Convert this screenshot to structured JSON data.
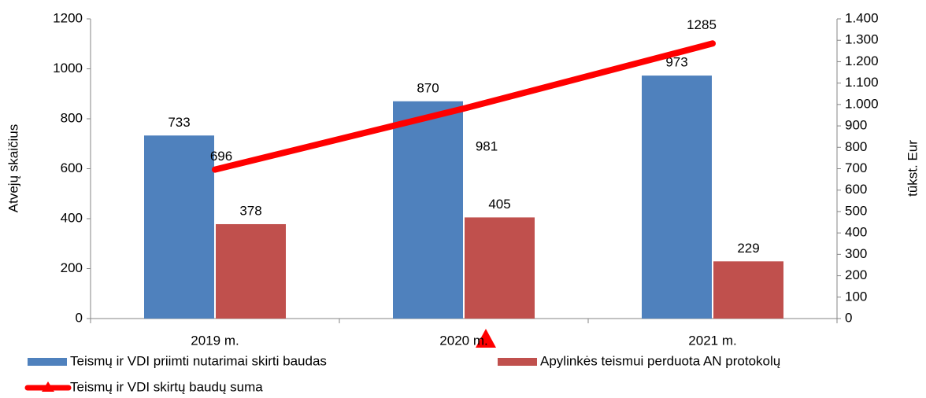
{
  "chart_data": {
    "type": "bar_line",
    "y_label": "Atvejų skaičius",
    "y2_label": "tūkst. Eur",
    "categories": [
      "2019 m.",
      "2020 m.",
      "2021 m."
    ],
    "series": [
      {
        "name": "Teismų ir VDI priimti nutarimai skirti baudas",
        "color": "#4f81bd",
        "type": "bar",
        "values": [
          733,
          870,
          973
        ]
      },
      {
        "name": "Apylinkės teismui perduota  AN protokolų",
        "color": "#c0504d",
        "type": "bar",
        "values": [
          378,
          405,
          229
        ]
      },
      {
        "name": "Teismų ir VDI skirtų baudų suma",
        "color": "#ff0000",
        "type": "line",
        "axis": "y2",
        "values": [
          696,
          981,
          1285
        ]
      }
    ],
    "ylim": [
      0,
      1200
    ],
    "yticks": [
      0,
      200,
      400,
      600,
      800,
      1000,
      1200
    ],
    "y2lim": [
      0,
      1400
    ],
    "y2ticks": [
      0,
      100,
      200,
      300,
      400,
      500,
      600,
      700,
      800,
      900,
      {
        "value": 1000,
        "label": "1.000"
      },
      {
        "value": 1100,
        "label": "1.100"
      },
      {
        "value": 1200,
        "label": "1.200"
      },
      {
        "value": 1300,
        "label": "1.300"
      },
      {
        "value": 1400,
        "label": "1.400"
      }
    ],
    "legend": "bottom"
  }
}
